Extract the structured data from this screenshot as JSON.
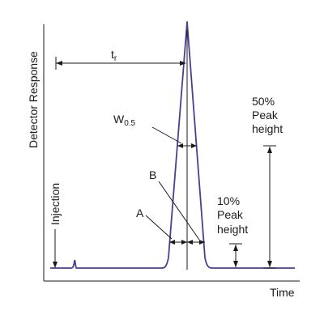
{
  "diagram": {
    "y_axis_label": "Detector Response",
    "x_axis_label": "Time",
    "retention_time": {
      "main": "t",
      "sub": "r"
    },
    "width_half": {
      "main": "W",
      "sub": "0.5"
    },
    "marker_a": "A",
    "marker_b": "B",
    "injection_label": "Injection",
    "fifty_percent": {
      "line1": "50%",
      "line2": "Peak",
      "line3": "height"
    },
    "ten_percent": {
      "line1": "10%",
      "line2": "Peak",
      "line3": "height"
    },
    "colors": {
      "trace": "#4a3f8f",
      "ink": "#1a1a1a",
      "background": "#ffffff"
    }
  }
}
